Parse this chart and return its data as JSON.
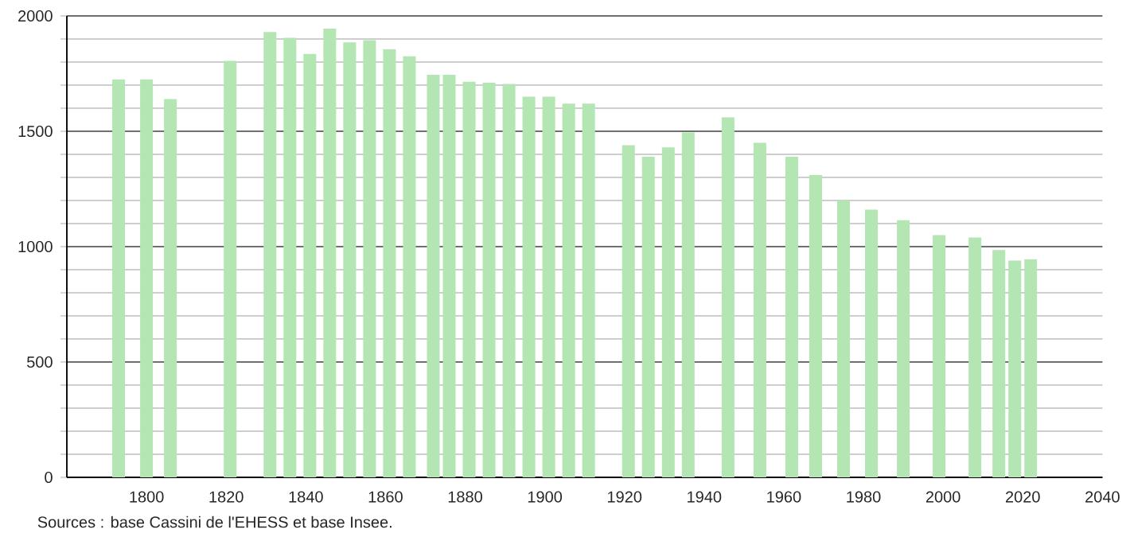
{
  "chart_data": {
    "type": "bar",
    "color": "#b3e6b3",
    "x": [
      1793,
      1800,
      1806,
      1821,
      1831,
      1836,
      1841,
      1846,
      1851,
      1856,
      1861,
      1866,
      1872,
      1876,
      1881,
      1886,
      1891,
      1896,
      1901,
      1906,
      1911,
      1921,
      1926,
      1931,
      1936,
      1946,
      1954,
      1962,
      1968,
      1975,
      1982,
      1990,
      1999,
      2008,
      2014,
      2018,
      2022
    ],
    "values": [
      1725,
      1725,
      1640,
      1805,
      1930,
      1905,
      1835,
      1945,
      1885,
      1895,
      1855,
      1825,
      1745,
      1745,
      1715,
      1710,
      1705,
      1650,
      1650,
      1620,
      1620,
      1440,
      1390,
      1430,
      1495,
      1560,
      1450,
      1390,
      1310,
      1200,
      1160,
      1115,
      1050,
      1040,
      985,
      940,
      945
    ],
    "xlim": [
      1780,
      2040
    ],
    "xticks": [
      1800,
      1820,
      1840,
      1860,
      1880,
      1900,
      1920,
      1940,
      1960,
      1980,
      2000,
      2020,
      2040
    ],
    "ylim": [
      0,
      2000
    ],
    "yticks": [
      0,
      {
        "value": 100,
        "label": null
      },
      {
        "value": 200,
        "label": null
      },
      {
        "value": 300,
        "label": null
      },
      {
        "value": 400,
        "label": null
      },
      500,
      {
        "value": 600,
        "label": null
      },
      {
        "value": 700,
        "label": null
      },
      {
        "value": 800,
        "label": null
      },
      {
        "value": 900,
        "label": null
      },
      1000,
      {
        "value": 1100,
        "label": null
      },
      {
        "value": 1200,
        "label": null
      },
      {
        "value": 1300,
        "label": null
      },
      {
        "value": 1400,
        "label": null
      },
      1500,
      {
        "value": 1600,
        "label": null
      },
      {
        "value": 1700,
        "label": null
      },
      {
        "value": 1800,
        "label": null
      },
      {
        "value": 1900,
        "label": null
      },
      2000
    ],
    "grid": "y",
    "annotations": [
      "Sources : base Cassini de l'EHESS et base Insee."
    ]
  }
}
